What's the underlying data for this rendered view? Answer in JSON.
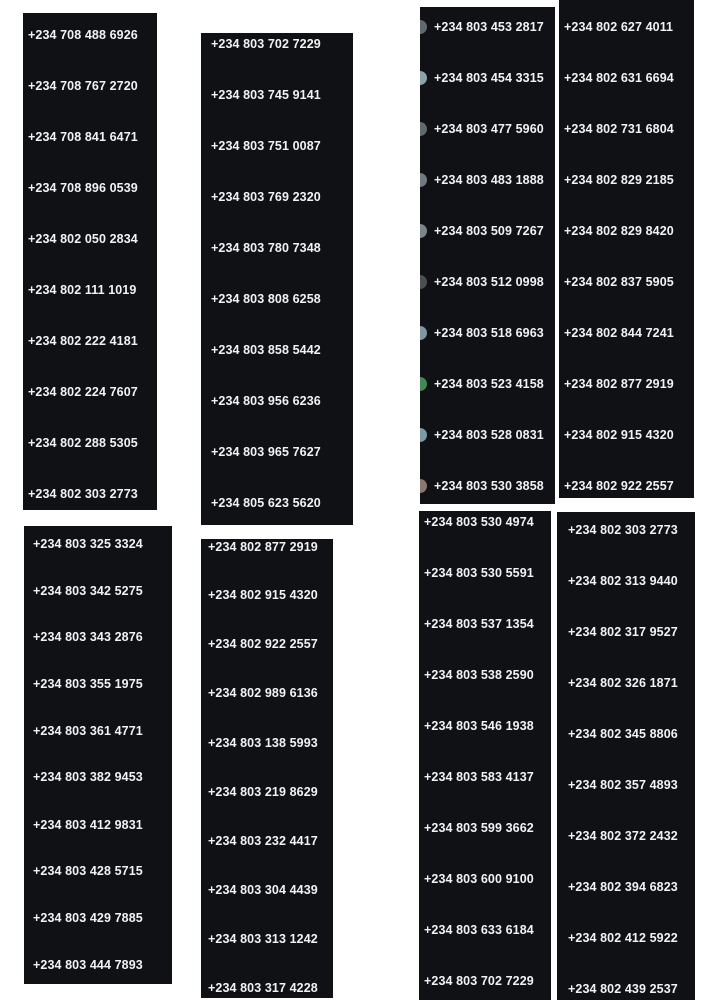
{
  "panels": [
    {
      "id": "panel-1",
      "numbers": [
        "+234 708 488 6926",
        "+234 708 767 2720",
        "+234 708 841 6471",
        "+234 708 896 0539",
        "+234 802 050 2834",
        "+234 802 111 1019",
        "+234 802 222 4181",
        "+234 802 224 7607",
        "+234 802 288 5305",
        "+234 802 303 2773"
      ]
    },
    {
      "id": "panel-2",
      "numbers": [
        "+234 803 702 7229",
        "+234 803 745 9141",
        "+234 803 751 0087",
        "+234 803 769 2320",
        "+234 803 780 7348",
        "+234 803 808 6258",
        "+234 803 858 5442",
        "+234 803 956 6236",
        "+234 803 965 7627",
        "+234 805 623 5620"
      ]
    },
    {
      "id": "panel-3",
      "numbers": [
        "+234 803 453 2817",
        "+234 803 454 3315",
        "+234 803 477 5960",
        "+234 803 483 1888",
        "+234 803 509 7267",
        "+234 803 512 0998",
        "+234 803 518 6963",
        "+234 803 523 4158",
        "+234 803 528 0831",
        "+234 803 530 3858"
      ]
    },
    {
      "id": "panel-4",
      "numbers": [
        "+234 802 627 4011",
        "+234 802 631 6694",
        "+234 802 731 6804",
        "+234 802 829 2185",
        "+234 802 829 8420",
        "+234 802 837 5905",
        "+234 802 844 7241",
        "+234 802 877 2919",
        "+234 802 915 4320",
        "+234 802 922 2557"
      ]
    },
    {
      "id": "panel-5",
      "numbers": [
        "+234 803 325 3324",
        "+234 803 342 5275",
        "+234 803 343 2876",
        "+234 803 355 1975",
        "+234 803 361 4771",
        "+234 803 382 9453",
        "+234 803 412 9831",
        "+234 803 428 5715",
        "+234 803 429 7885",
        "+234 803 444 7893"
      ]
    },
    {
      "id": "panel-6",
      "numbers": [
        "+234 802 877 2919",
        "+234 802 915 4320",
        "+234 802 922 2557",
        "+234 802 989 6136",
        "+234 803 138 5993",
        "+234 803 219 8629",
        "+234 803 232 4417",
        "+234 803 304 4439",
        "+234 803 313 1242",
        "+234 803 317 4228"
      ]
    },
    {
      "id": "panel-7",
      "numbers": [
        "+234 803 530 4974",
        "+234 803 530 5591",
        "+234 803 537 1354",
        "+234 803 538 2590",
        "+234 803 546 1938",
        "+234 803 583 4137",
        "+234 803 599 3662",
        "+234 803 600 9100",
        "+234 803 633 6184",
        "+234 803 702 7229"
      ]
    },
    {
      "id": "panel-8",
      "numbers": [
        "+234 802 303 2773",
        "+234 802 313 9440",
        "+234 802 317 9527",
        "+234 802 326 1871",
        "+234 802 345 8806",
        "+234 802 357 4893",
        "+234 802 372 2432",
        "+234 802 394 6823",
        "+234 802 412 5922",
        "+234 802 439 2537"
      ]
    }
  ]
}
